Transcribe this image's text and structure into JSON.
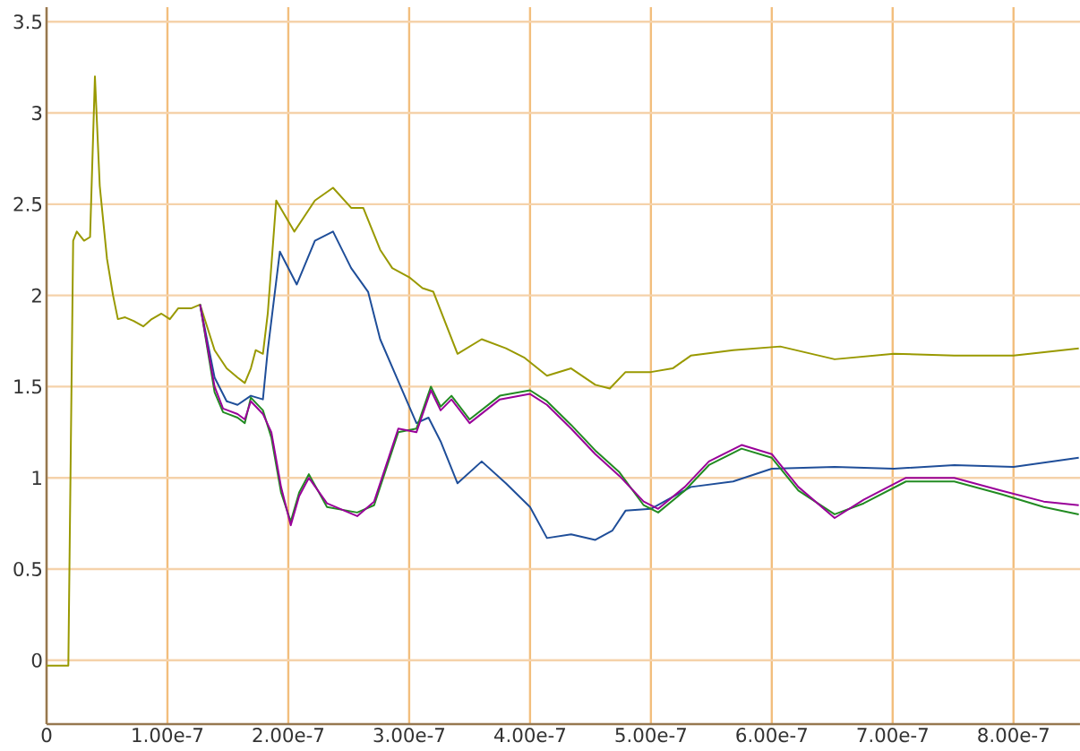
{
  "chart_data": {
    "type": "line",
    "xlim": [
      0,
      8.55e-07
    ],
    "ylim": [
      -0.35,
      3.58
    ],
    "xticks": [
      0,
      {
        "value": 1e-07,
        "label": "1.00e-7"
      },
      {
        "value": 2e-07,
        "label": "2.00e-7"
      },
      {
        "value": 3e-07,
        "label": "3.00e-7"
      },
      {
        "value": 4e-07,
        "label": "4.00e-7"
      },
      {
        "value": 5e-07,
        "label": "5.00e-7"
      },
      {
        "value": 6e-07,
        "label": "6.00e-7"
      },
      {
        "value": 7e-07,
        "label": "7.00e-7"
      },
      {
        "value": 8e-07,
        "label": "8.00e-7"
      }
    ],
    "yticks": [
      0,
      0.5,
      1,
      1.5,
      2,
      2.5,
      3,
      3.5
    ],
    "grid": true,
    "marker": "none",
    "line_style": "solid",
    "series": [
      {
        "color": "#999900",
        "x": [
          0,
          1.8e-08,
          2.2e-08,
          2.5e-08,
          3.1e-08,
          3.6e-08,
          4e-08,
          4.4e-08,
          5e-08,
          5.5e-08,
          5.9e-08,
          6.5e-08,
          7.2e-08,
          8e-08,
          8.7e-08,
          9.5e-08,
          1.02e-07,
          1.09e-07,
          1.2e-07,
          1.27e-07,
          1.39e-07,
          1.49e-07,
          1.58e-07,
          1.64e-07,
          1.69e-07,
          1.73e-07,
          1.79e-07,
          1.83e-07,
          1.9e-07,
          2.05e-07,
          2.22e-07,
          2.37e-07,
          2.52e-07,
          2.62e-07,
          2.76e-07,
          2.86e-07,
          3e-07,
          3.11e-07,
          3.2e-07,
          3.4e-07,
          3.6e-07,
          3.8e-07,
          3.95e-07,
          4.14e-07,
          4.34e-07,
          4.54e-07,
          4.66e-07,
          4.79e-07,
          5e-07,
          5.18e-07,
          5.33e-07,
          5.68e-07,
          6.07e-07,
          6.52e-07,
          7.01e-07,
          7.51e-07,
          8e-07,
          8.54e-07
        ],
        "values": [
          -0.03,
          -0.03,
          2.3,
          2.35,
          2.3,
          2.32,
          3.2,
          2.6,
          2.2,
          2.0,
          1.87,
          1.88,
          1.86,
          1.83,
          1.87,
          1.9,
          1.87,
          1.93,
          1.93,
          1.95,
          1.7,
          1.6,
          1.55,
          1.52,
          1.6,
          1.7,
          1.68,
          1.9,
          2.52,
          2.35,
          2.52,
          2.59,
          2.48,
          2.48,
          2.25,
          2.15,
          2.1,
          2.04,
          2.02,
          1.68,
          1.76,
          1.71,
          1.66,
          1.56,
          1.6,
          1.51,
          1.49,
          1.58,
          1.58,
          1.6,
          1.67,
          1.7,
          1.72,
          1.65,
          1.68,
          1.67,
          1.67,
          1.71
        ]
      },
      {
        "color": "#1f4e99",
        "x": [
          1.27e-07,
          1.39e-07,
          1.49e-07,
          1.58e-07,
          1.69e-07,
          1.79e-07,
          1.83e-07,
          1.93e-07,
          2.07e-07,
          2.22e-07,
          2.37e-07,
          2.52e-07,
          2.66e-07,
          2.76e-07,
          2.91e-07,
          3.06e-07,
          3.16e-07,
          3.26e-07,
          3.4e-07,
          3.6e-07,
          3.8e-07,
          4e-07,
          4.14e-07,
          4.34e-07,
          4.54e-07,
          4.68e-07,
          4.79e-07,
          5e-07,
          5.33e-07,
          5.68e-07,
          6e-07,
          6.52e-07,
          7.01e-07,
          7.51e-07,
          8e-07,
          8.54e-07
        ],
        "values": [
          1.95,
          1.55,
          1.42,
          1.4,
          1.45,
          1.43,
          1.7,
          2.24,
          2.06,
          2.3,
          2.35,
          2.15,
          2.02,
          1.76,
          1.53,
          1.3,
          1.33,
          1.2,
          0.97,
          1.09,
          0.97,
          0.84,
          0.67,
          0.69,
          0.66,
          0.71,
          0.82,
          0.83,
          0.95,
          0.98,
          1.05,
          1.06,
          1.05,
          1.07,
          1.06,
          1.11
        ]
      },
      {
        "color": "#228b22",
        "x": [
          1.27e-07,
          1.39e-07,
          1.46e-07,
          1.58e-07,
          1.64e-07,
          1.69e-07,
          1.79e-07,
          1.86e-07,
          1.94e-07,
          2.02e-07,
          2.09e-07,
          2.17e-07,
          2.32e-07,
          2.57e-07,
          2.71e-07,
          2.91e-07,
          3.06e-07,
          3.18e-07,
          3.26e-07,
          3.35e-07,
          3.5e-07,
          3.75e-07,
          4e-07,
          4.14e-07,
          4.34e-07,
          4.54e-07,
          4.74e-07,
          4.94e-07,
          5.06e-07,
          5.28e-07,
          5.48e-07,
          5.75e-07,
          6e-07,
          6.22e-07,
          6.52e-07,
          6.76e-07,
          7.11e-07,
          7.51e-07,
          7.9e-07,
          8.25e-07,
          8.54e-07
        ],
        "values": [
          1.95,
          1.47,
          1.36,
          1.33,
          1.3,
          1.44,
          1.37,
          1.22,
          0.92,
          0.76,
          0.92,
          1.02,
          0.84,
          0.81,
          0.85,
          1.25,
          1.27,
          1.5,
          1.39,
          1.45,
          1.32,
          1.45,
          1.48,
          1.42,
          1.29,
          1.15,
          1.03,
          0.85,
          0.81,
          0.93,
          1.07,
          1.16,
          1.11,
          0.93,
          0.8,
          0.86,
          0.98,
          0.98,
          0.91,
          0.84,
          0.8
        ]
      },
      {
        "color": "#990099",
        "x": [
          1.27e-07,
          1.39e-07,
          1.46e-07,
          1.58e-07,
          1.64e-07,
          1.69e-07,
          1.79e-07,
          1.86e-07,
          1.94e-07,
          2.02e-07,
          2.09e-07,
          2.17e-07,
          2.32e-07,
          2.57e-07,
          2.71e-07,
          2.91e-07,
          3.06e-07,
          3.18e-07,
          3.26e-07,
          3.35e-07,
          3.5e-07,
          3.75e-07,
          4e-07,
          4.14e-07,
          4.34e-07,
          4.54e-07,
          4.74e-07,
          4.94e-07,
          5.06e-07,
          5.28e-07,
          5.48e-07,
          5.75e-07,
          6e-07,
          6.22e-07,
          6.52e-07,
          6.76e-07,
          7.11e-07,
          7.51e-07,
          7.9e-07,
          8.25e-07,
          8.54e-07
        ],
        "values": [
          1.95,
          1.5,
          1.38,
          1.35,
          1.32,
          1.42,
          1.35,
          1.25,
          0.95,
          0.74,
          0.9,
          1.0,
          0.86,
          0.79,
          0.87,
          1.27,
          1.25,
          1.48,
          1.37,
          1.43,
          1.3,
          1.43,
          1.46,
          1.4,
          1.27,
          1.13,
          1.01,
          0.87,
          0.83,
          0.95,
          1.09,
          1.18,
          1.13,
          0.95,
          0.78,
          0.88,
          1.0,
          1.0,
          0.93,
          0.87,
          0.85
        ]
      }
    ]
  }
}
